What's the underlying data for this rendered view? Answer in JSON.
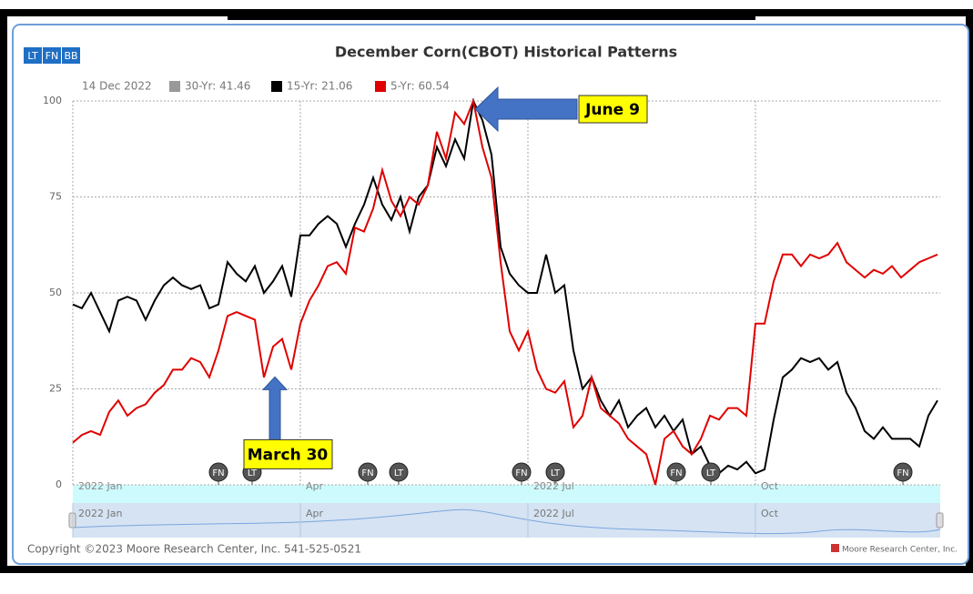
{
  "chart_data": {
    "type": "line",
    "title": "December Corn(CBOT) Historical Patterns",
    "toolbar": [
      "LT",
      "FN",
      "BB"
    ],
    "legend_date": "14 Dec 2022",
    "legend": [
      {
        "name": "30-Yr: 41.46",
        "color": "#999999"
      },
      {
        "name": "15-Yr: 21.06",
        "color": "#000000"
      },
      {
        "name": "5-Yr: 60.54",
        "color": "#e00000"
      }
    ],
    "x": [
      0,
      1,
      2,
      3,
      4,
      5,
      6,
      7,
      8,
      9,
      10,
      11,
      12,
      13,
      14,
      15,
      16,
      17,
      18,
      19,
      20,
      21,
      22,
      23,
      24,
      25,
      26,
      27,
      28,
      29,
      30,
      31,
      32,
      33,
      34,
      35,
      36,
      37,
      38,
      39,
      40,
      41,
      42,
      43,
      44,
      45,
      46,
      47,
      48,
      49,
      50,
      51,
      52,
      53,
      54,
      55,
      56,
      57,
      58,
      59,
      60,
      61,
      62,
      63,
      64,
      65,
      66,
      67,
      68,
      69,
      70,
      71,
      72,
      73,
      74,
      75,
      76,
      77,
      78,
      79,
      80,
      81,
      82,
      83,
      84,
      85,
      86,
      87,
      88,
      89,
      90,
      91,
      92,
      93,
      94,
      95
    ],
    "series": [
      {
        "name": "15-Yr",
        "color": "#000000",
        "values": [
          47,
          46,
          50,
          45,
          40,
          48,
          49,
          48,
          43,
          48,
          52,
          54,
          52,
          51,
          52,
          46,
          47,
          58,
          55,
          53,
          57,
          50,
          53,
          57,
          49,
          65,
          65,
          68,
          70,
          68,
          62,
          68,
          73,
          80,
          73,
          69,
          75,
          66,
          75,
          78,
          88,
          83,
          90,
          85,
          100,
          95,
          86,
          62,
          55,
          52,
          50,
          50,
          60,
          50,
          52,
          35,
          25,
          28,
          22,
          18,
          22,
          15,
          18,
          20,
          15,
          18,
          14,
          17,
          8,
          10,
          5,
          3,
          5,
          4,
          6,
          3,
          4,
          17,
          28,
          30,
          33,
          32,
          33,
          30,
          32,
          24,
          20,
          14,
          12,
          15,
          12,
          12,
          12,
          10,
          18,
          22
        ]
      },
      {
        "name": "5-Yr",
        "color": "#e00000",
        "values": [
          11,
          13,
          14,
          13,
          19,
          22,
          18,
          20,
          21,
          24,
          26,
          30,
          30,
          33,
          32,
          28,
          35,
          44,
          45,
          44,
          43,
          28,
          36,
          38,
          30,
          42,
          48,
          52,
          57,
          58,
          55,
          67,
          66,
          72,
          82,
          74,
          70,
          75,
          73,
          78,
          92,
          85,
          97,
          94,
          100,
          88,
          80,
          58,
          40,
          35,
          40,
          30,
          25,
          24,
          27,
          15,
          18,
          28,
          20,
          18,
          16,
          12,
          10,
          8,
          0,
          12,
          14,
          10,
          8,
          12,
          18,
          17,
          20,
          20,
          18,
          42,
          42,
          53,
          60,
          60,
          57,
          60,
          59,
          60,
          63,
          58,
          56,
          54,
          56,
          55,
          57,
          54,
          56,
          58,
          59,
          60
        ]
      }
    ],
    "xlim": [
      0,
      95
    ],
    "xticks": [
      {
        "value": 0,
        "label": "2022 Jan"
      },
      {
        "value": 25,
        "label": "Apr"
      },
      {
        "value": 50,
        "label": "2022 Jul"
      },
      {
        "value": 75,
        "label": "Oct"
      }
    ],
    "ylim": [
      0,
      100
    ],
    "yticks": [
      0,
      25,
      50,
      75,
      100
    ],
    "grid": true,
    "markers": [
      {
        "label": "FN",
        "x": 16
      },
      {
        "label": "LT",
        "x": 19.7
      },
      {
        "label": "FN",
        "x": 32.4
      },
      {
        "label": "LT",
        "x": 35.8
      },
      {
        "label": "FN",
        "x": 49.3
      },
      {
        "label": "LT",
        "x": 53
      },
      {
        "label": "FN",
        "x": 66.3
      },
      {
        "label": "LT",
        "x": 70.1
      },
      {
        "label": "FN",
        "x": 91.2
      }
    ],
    "annotations": [
      {
        "text": "June 9",
        "x": 44,
        "y": 100
      },
      {
        "text": "March 30",
        "x": 24,
        "y": 30
      }
    ],
    "copyright": "Copyright ©2023 Moore Research Center, Inc. 541-525-0521",
    "brand": "Moore Research Center, Inc."
  }
}
